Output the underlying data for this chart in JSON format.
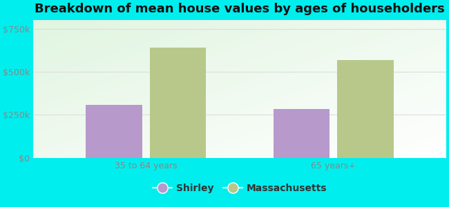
{
  "title": "Breakdown of mean house values by ages of householders",
  "categories": [
    "35 to 64 years",
    "65 years+"
  ],
  "shirley_values": [
    310000,
    285000
  ],
  "massachusetts_values": [
    640000,
    570000
  ],
  "shirley_color": "#b899cc",
  "massachusetts_color": "#b8c88a",
  "shirley_label": "Shirley",
  "massachusetts_label": "Massachusetts",
  "ylim": [
    0,
    800000
  ],
  "yticks": [
    0,
    250000,
    500000,
    750000
  ],
  "ytick_labels": [
    "$0",
    "$250k",
    "$500k",
    "$750k"
  ],
  "bg_color": "#00eeee",
  "bar_width": 0.3,
  "title_fontsize": 13,
  "tick_fontsize": 9,
  "legend_fontsize": 10,
  "tick_color": "#888888",
  "grid_color": "#dddddd"
}
